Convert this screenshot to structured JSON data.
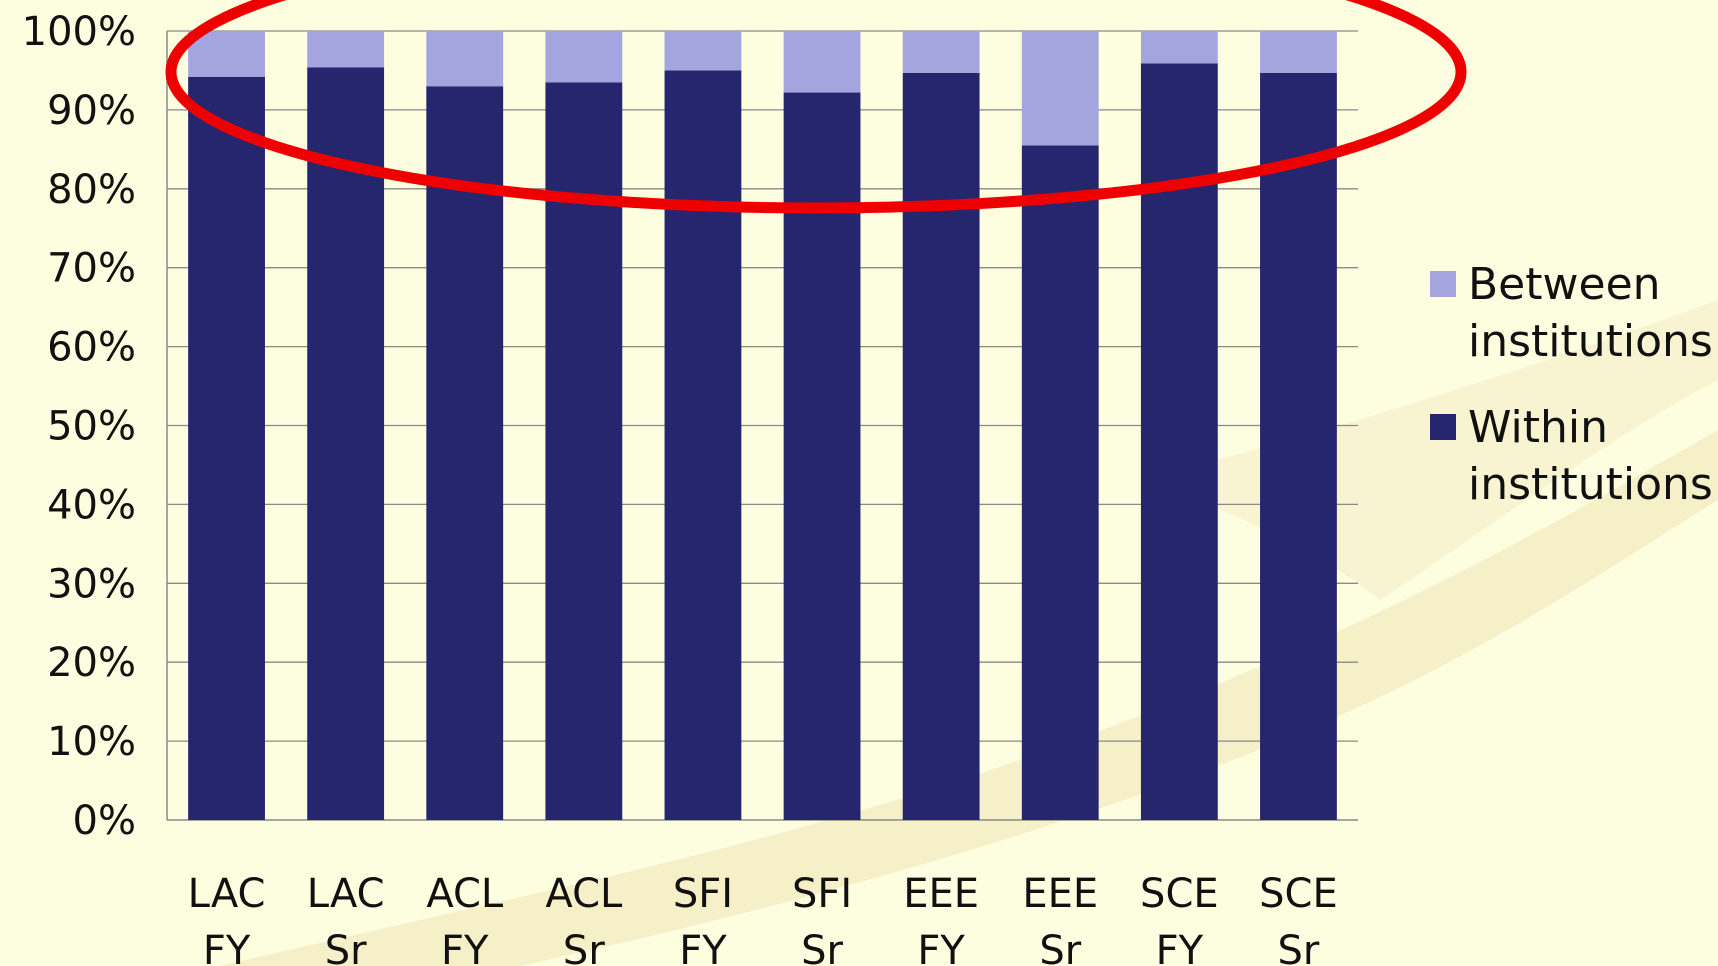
{
  "chart_data": {
    "type": "bar",
    "stacked": true,
    "percent": true,
    "categories": [
      [
        "LAC",
        "FY"
      ],
      [
        "LAC",
        "Sr"
      ],
      [
        "ACL",
        "FY"
      ],
      [
        "ACL",
        "Sr"
      ],
      [
        "SFI",
        "FY"
      ],
      [
        "SFI",
        "Sr"
      ],
      [
        "EEE",
        "FY"
      ],
      [
        "EEE",
        "Sr"
      ],
      [
        "SCE",
        "FY"
      ],
      [
        "SCE",
        "Sr"
      ]
    ],
    "series": [
      {
        "name": "Within institutions",
        "color": "#26266e",
        "values": [
          94.2,
          95.4,
          93.0,
          93.5,
          95.0,
          92.2,
          94.7,
          85.5,
          95.9,
          94.7
        ]
      },
      {
        "name": "Between institutions",
        "color": "#a4a4de",
        "values": [
          5.8,
          4.6,
          7.0,
          6.5,
          5.0,
          7.8,
          5.3,
          14.5,
          4.1,
          5.3
        ]
      }
    ],
    "legend_order": [
      "Between institutions",
      "Within institutions"
    ],
    "legend_lines": {
      "Between institutions": [
        "Between",
        "institutions"
      ],
      "Within institutions": [
        "Within",
        "institutions"
      ]
    },
    "ylim": [
      0,
      100
    ],
    "yticks": [
      "0%",
      "10%",
      "20%",
      "30%",
      "40%",
      "50%",
      "60%",
      "70%",
      "80%",
      "90%",
      "100%"
    ],
    "grid": true,
    "legend": "right",
    "annotation": {
      "shape": "ellipse",
      "color": "#ee0000",
      "highlights": "top of bars (75%–100%)"
    }
  }
}
